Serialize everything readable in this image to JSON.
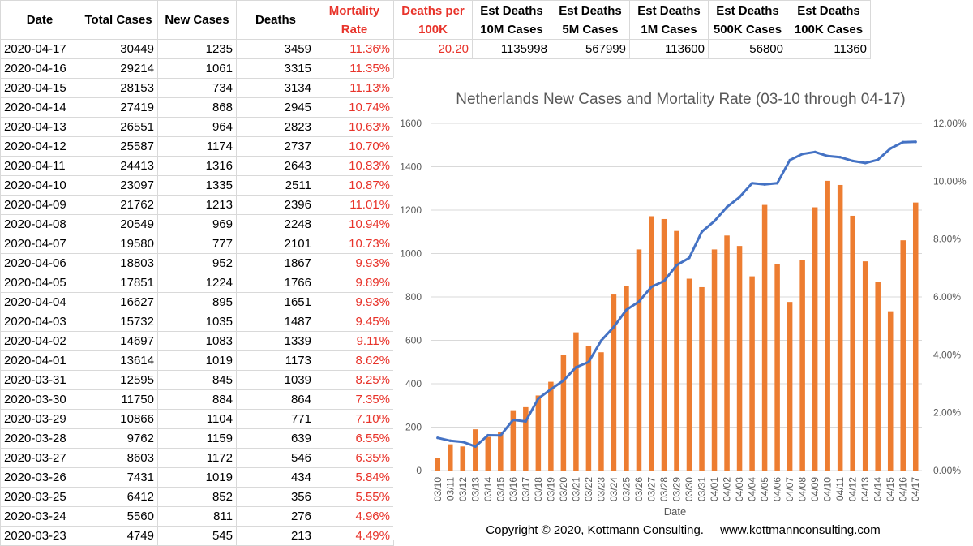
{
  "table": {
    "headers": [
      {
        "lines": [
          "Date"
        ],
        "red": false
      },
      {
        "lines": [
          "Total Cases"
        ],
        "red": false
      },
      {
        "lines": [
          "New Cases"
        ],
        "red": false
      },
      {
        "lines": [
          "Deaths"
        ],
        "red": false
      },
      {
        "lines": [
          "Mortality",
          "Rate"
        ],
        "red": true
      },
      {
        "lines": [
          "Deaths per",
          "100K"
        ],
        "red": true
      },
      {
        "lines": [
          "Est Deaths",
          "10M Cases"
        ],
        "red": false
      },
      {
        "lines": [
          "Est Deaths",
          "5M Cases"
        ],
        "red": false
      },
      {
        "lines": [
          "Est Deaths",
          "1M Cases"
        ],
        "red": false
      },
      {
        "lines": [
          "Est Deaths",
          "500K Cases"
        ],
        "red": false
      },
      {
        "lines": [
          "Est Deaths",
          "100K Cases"
        ],
        "red": false
      }
    ],
    "first_row_extra": [
      "20.20",
      "1135998",
      "567999",
      "113600",
      "56800",
      "11360"
    ],
    "rows": [
      [
        "2020-04-17",
        "30449",
        "1235",
        "3459",
        "11.36%"
      ],
      [
        "2020-04-16",
        "29214",
        "1061",
        "3315",
        "11.35%"
      ],
      [
        "2020-04-15",
        "28153",
        "734",
        "3134",
        "11.13%"
      ],
      [
        "2020-04-14",
        "27419",
        "868",
        "2945",
        "10.74%"
      ],
      [
        "2020-04-13",
        "26551",
        "964",
        "2823",
        "10.63%"
      ],
      [
        "2020-04-12",
        "25587",
        "1174",
        "2737",
        "10.70%"
      ],
      [
        "2020-04-11",
        "24413",
        "1316",
        "2643",
        "10.83%"
      ],
      [
        "2020-04-10",
        "23097",
        "1335",
        "2511",
        "10.87%"
      ],
      [
        "2020-04-09",
        "21762",
        "1213",
        "2396",
        "11.01%"
      ],
      [
        "2020-04-08",
        "20549",
        "969",
        "2248",
        "10.94%"
      ],
      [
        "2020-04-07",
        "19580",
        "777",
        "2101",
        "10.73%"
      ],
      [
        "2020-04-06",
        "18803",
        "952",
        "1867",
        "9.93%"
      ],
      [
        "2020-04-05",
        "17851",
        "1224",
        "1766",
        "9.89%"
      ],
      [
        "2020-04-04",
        "16627",
        "895",
        "1651",
        "9.93%"
      ],
      [
        "2020-04-03",
        "15732",
        "1035",
        "1487",
        "9.45%"
      ],
      [
        "2020-04-02",
        "14697",
        "1083",
        "1339",
        "9.11%"
      ],
      [
        "2020-04-01",
        "13614",
        "1019",
        "1173",
        "8.62%"
      ],
      [
        "2020-03-31",
        "12595",
        "845",
        "1039",
        "8.25%"
      ],
      [
        "2020-03-30",
        "11750",
        "884",
        "864",
        "7.35%"
      ],
      [
        "2020-03-29",
        "10866",
        "1104",
        "771",
        "7.10%"
      ],
      [
        "2020-03-28",
        "9762",
        "1159",
        "639",
        "6.55%"
      ],
      [
        "2020-03-27",
        "8603",
        "1172",
        "546",
        "6.35%"
      ],
      [
        "2020-03-26",
        "7431",
        "1019",
        "434",
        "5.84%"
      ],
      [
        "2020-03-25",
        "6412",
        "852",
        "356",
        "5.55%"
      ],
      [
        "2020-03-24",
        "5560",
        "811",
        "276",
        "4.96%"
      ],
      [
        "2020-03-23",
        "4749",
        "545",
        "213",
        "4.49%"
      ]
    ]
  },
  "chart_data": {
    "type": "bar",
    "title": "Netherlands New Cases and Mortality Rate (03-10 through 04-17)",
    "xlabel": "Date",
    "ylabel": "",
    "y2label": "",
    "ylim": [
      0,
      1600
    ],
    "y2lim": [
      0,
      0.12
    ],
    "yticks": [
      "0",
      "200",
      "400",
      "600",
      "800",
      "1000",
      "1200",
      "1400",
      "1600"
    ],
    "y2ticks": [
      "0.00%",
      "2.00%",
      "4.00%",
      "6.00%",
      "8.00%",
      "10.00%",
      "12.00%"
    ],
    "grid": true,
    "legend": "none",
    "categories": [
      "03/10",
      "03/11",
      "03/12",
      "03/13",
      "03/14",
      "03/15",
      "03/16",
      "03/17",
      "03/18",
      "03/19",
      "03/20",
      "03/21",
      "03/22",
      "03/23",
      "03/24",
      "03/25",
      "03/26",
      "03/27",
      "03/28",
      "03/29",
      "03/30",
      "03/31",
      "04/01",
      "04/02",
      "04/03",
      "04/04",
      "04/05",
      "04/06",
      "04/07",
      "04/08",
      "04/09",
      "04/10",
      "04/11",
      "04/12",
      "04/13",
      "04/14",
      "04/15",
      "04/16",
      "04/17"
    ],
    "series": [
      {
        "type": "bar",
        "axis": "left",
        "color": "#ed7d31",
        "values": [
          57,
          121,
          111,
          190,
          155,
          176,
          278,
          292,
          346,
          409,
          534,
          637,
          573,
          545,
          811,
          852,
          1019,
          1172,
          1159,
          1104,
          884,
          845,
          1019,
          1083,
          1035,
          895,
          1224,
          952,
          777,
          969,
          1213,
          1335,
          1316,
          1174,
          964,
          868,
          734,
          1061,
          1235
        ]
      },
      {
        "type": "line",
        "axis": "right",
        "color": "#4472c4",
        "values": [
          0.0113,
          0.0103,
          0.0099,
          0.0083,
          0.0122,
          0.0121,
          0.0175,
          0.017,
          0.0249,
          0.0281,
          0.0311,
          0.0357,
          0.0375,
          0.0449,
          0.0496,
          0.0555,
          0.0584,
          0.0635,
          0.0655,
          0.071,
          0.0735,
          0.0825,
          0.0862,
          0.0911,
          0.0945,
          0.0993,
          0.0989,
          0.0993,
          0.1073,
          0.1094,
          0.1101,
          0.1087,
          0.1083,
          0.107,
          0.1063,
          0.1074,
          0.1113,
          0.1135,
          0.1136
        ]
      }
    ]
  },
  "footer": {
    "copyright": "Copyright © 2020, Kottmann Consulting.",
    "website": "www.kottmannconsulting.com"
  }
}
